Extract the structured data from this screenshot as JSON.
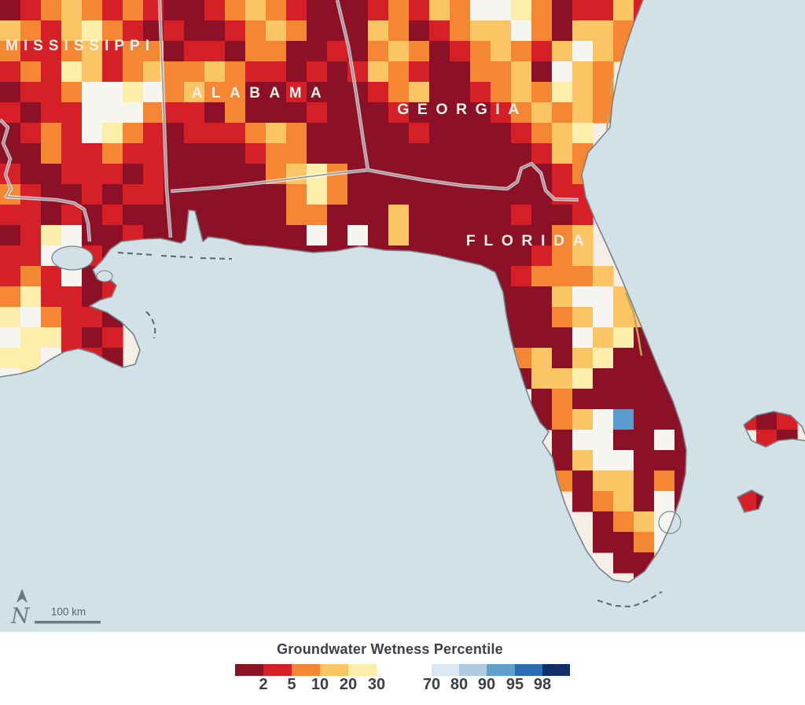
{
  "map": {
    "ocean_color": "#d2e1e7",
    "land_color": "#f3efe7",
    "coast_color": "#75848a",
    "border_color": "#8f979c",
    "region_labels": [
      {
        "name": "MISSISSIPPI"
      },
      {
        "name": "ALABAMA"
      },
      {
        "name": "GEORGIA"
      },
      {
        "name": "FLORIDA"
      }
    ],
    "north_arrow": {
      "label": "N"
    },
    "scale_bar": {
      "label": "100 km"
    },
    "grid": {
      "cell_size": 26,
      "palette": {
        "D": "#8c1126",
        "R": "#d62027",
        "O": "#f58634",
        "A": "#fbc464",
        "Y": "#fdeeac",
        "W": "#f7f5f0",
        "b": "#b8d2e8",
        "B": "#5b9bd0"
      },
      "rows": [
        "DROAORORDDROAORDDDRORAOWWYODRRAR........",
        "AORAYORDRDDROAODDDAODROAAWODAAOR........",
        "ORROAROODRRDOODDRDOAODROAORAWAO.........",
        "RORYAROAOOAORRDRDRAORDDOOADWAO..........",
        "DRROWWYWOAOODDRDDDROADDROAOYAO..........",
        "RDRRWWWORRDODDDRDDDRDDDDROAOAO..........",
        "DRORWYORDRRROAODDDDDRDDDDROAY...........",
        "DDORRORRDDDDROODDDDDDDDDDDRAO...........",
        "RDDRRRDRDDDDDOAYODDDDDDDDDDRO...........",
        "ORDDRDRRDDDDDDOYODDDDDDDDDDRR...........",
        "RRDRDRDDDDDDDDOODDDADDDDDRDDR...........",
        "DRYWDDRDDDDDDDDWDWDADDDDDDDOA...........",
        "RRWWRDR.DDDDDDDDDDDDDDDDDDROA...........",
        "RORWDRR..............DDDDROOOA.........",
        "OYRRDR..................DDDAWWAA........",
        "YWORRD..................DDDOAWAA........",
        "WYYRDR..................DDDDWAYD........",
        "YYWRRD...................OADAYDDD.......",
        "WYRDR....................DAAYDDDD.......",
        "..........................DODDDDDD......",
        "..........................DOAWBDDD..RDR.",
        "...........................DWWDDWD...RD.",
        "...........................DAWWDDD......",
        "...........................ODAADOD......",
        "............................DOADWD..RD..",
        ".............................DOAWb......",
        ".............................DDOWB......",
        "..............................DDAA......",
        "...............................DA.......",
        "........................................",
        "........................................"
      ]
    }
  },
  "legend": {
    "title": "Groundwater Wetness Percentile",
    "dry": {
      "colors": [
        "#8c1126",
        "#d62027",
        "#f58634",
        "#fbc464",
        "#fdeeac"
      ],
      "labels": [
        "2",
        "5",
        "10",
        "20",
        "30"
      ]
    },
    "wet": {
      "colors": [
        "#dbe8f2",
        "#aecbe2",
        "#5f9fcc",
        "#2a6db4",
        "#102f68"
      ],
      "labels": [
        "70",
        "80",
        "90",
        "95",
        "98"
      ]
    }
  }
}
